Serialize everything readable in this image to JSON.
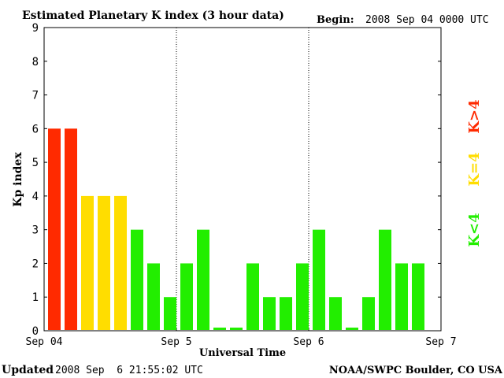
{
  "header": {
    "title": "Estimated Planetary K index (3 hour data)",
    "begin_label": "Begin:",
    "begin_value": "2008 Sep 04 0000 UTC"
  },
  "footer": {
    "updated_label": "Updated",
    "updated_value": "2008 Sep  6 21:55:02 UTC",
    "source": "NOAA/SWPC Boulder, CO USA"
  },
  "legend": {
    "high": "K>4",
    "equal": "K=4",
    "low": "K<4"
  },
  "colors": {
    "high": "#ff2a00",
    "equal": "#ffdd00",
    "low": "#22ee00"
  },
  "chart_data": {
    "type": "bar",
    "title": "Estimated Planetary K index (3 hour data)",
    "xlabel": "Universal Time",
    "ylabel": "Kp index",
    "ylim": [
      0,
      9
    ],
    "y_ticks": [
      "0",
      "1",
      "2",
      "3",
      "4",
      "5",
      "6",
      "7",
      "8",
      "9"
    ],
    "x_ticks": [
      "Sep 04",
      "Sep 5",
      "Sep 6",
      "Sep 7"
    ],
    "interval_hours": 3,
    "values": [
      6,
      6,
      4,
      4,
      4,
      3,
      2,
      1,
      2,
      3,
      0,
      0,
      2,
      1,
      1,
      2,
      3,
      1,
      0,
      1,
      3,
      2,
      2
    ],
    "day_separators": true,
    "grid": false
  }
}
